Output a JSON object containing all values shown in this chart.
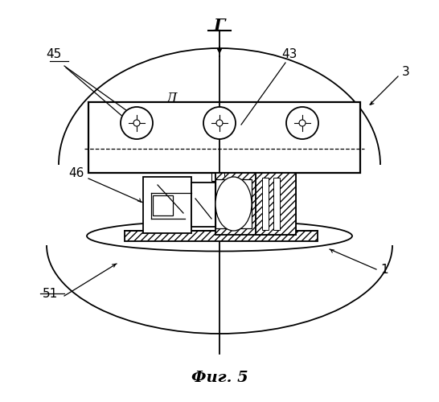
{
  "bg_color": "#ffffff",
  "line_color": "#000000",
  "fig_caption": "Фиг. 5",
  "label_G": "Г",
  "label_D": "Д",
  "label_45": "45",
  "label_43": "43",
  "label_3": "3",
  "label_46": "46",
  "label_1": "1",
  "label_51": "51"
}
